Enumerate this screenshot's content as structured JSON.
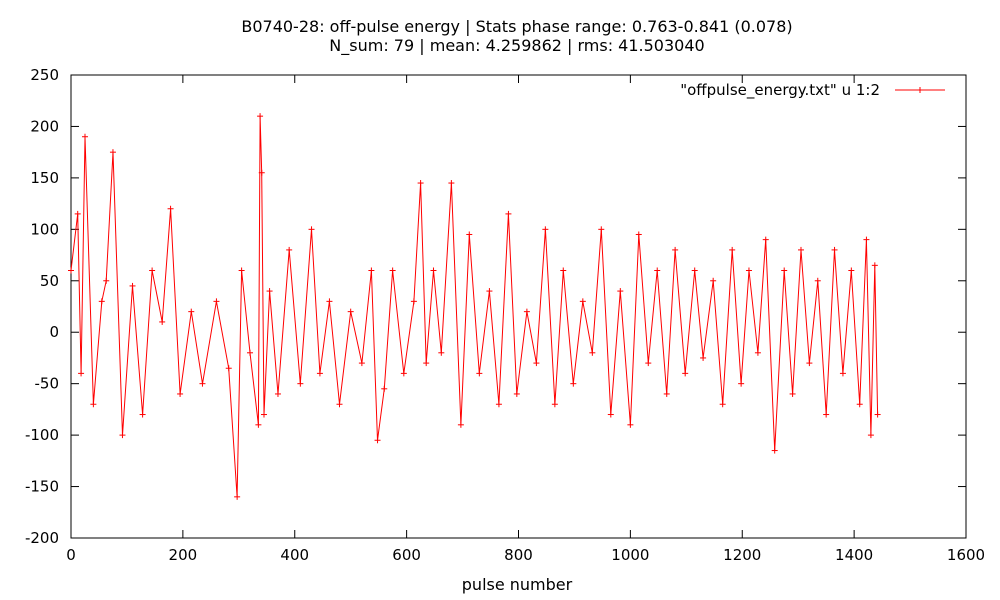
{
  "chart_data": {
    "type": "line",
    "title": "B0740-28: off-pulse energy | Stats phase range: 0.763-0.841 (0.078)",
    "subtitle": "N_sum: 79 | mean: 4.259862 | rms: 41.503040",
    "xlabel": "pulse number",
    "ylabel": "",
    "xlim": [
      0,
      1600
    ],
    "ylim": [
      -200,
      250
    ],
    "x_ticks": [
      "0",
      "200",
      "400",
      "600",
      "800",
      "1000",
      "1200",
      "1400",
      "1600"
    ],
    "y_ticks": [
      "-200",
      "-150",
      "-100",
      "-50",
      "0",
      "50",
      "100",
      "150",
      "200",
      "250"
    ],
    "grid": false,
    "legend_position": "top-right",
    "series": [
      {
        "name": "\"offpulse_energy.txt\" u 1:2",
        "color": "#ff0000",
        "marker": "plus",
        "x": [
          0,
          12,
          18,
          25,
          40,
          55,
          63,
          75,
          92,
          110,
          128,
          145,
          163,
          178,
          195,
          215,
          235,
          260,
          282,
          297,
          305,
          320,
          335,
          338,
          341,
          345,
          355,
          370,
          390,
          410,
          430,
          445,
          462,
          480,
          500,
          520,
          537,
          548,
          560,
          575,
          595,
          613,
          625,
          635,
          648,
          662,
          680,
          697,
          712,
          730,
          748,
          765,
          782,
          797,
          815,
          832,
          848,
          865,
          880,
          898,
          915,
          932,
          948,
          965,
          982,
          1000,
          1015,
          1032,
          1048,
          1065,
          1080,
          1098,
          1115,
          1130,
          1148,
          1165,
          1182,
          1198,
          1212,
          1228,
          1242,
          1258,
          1275,
          1290,
          1305,
          1320,
          1335,
          1350,
          1365,
          1380,
          1395,
          1410,
          1422,
          1430,
          1437,
          1442
        ],
        "y": [
          60,
          115,
          -40,
          190,
          -70,
          30,
          50,
          175,
          -100,
          45,
          -80,
          60,
          10,
          120,
          -60,
          20,
          -50,
          30,
          -35,
          -160,
          60,
          -20,
          -90,
          210,
          155,
          -80,
          40,
          -60,
          80,
          -50,
          100,
          -40,
          30,
          -70,
          20,
          -30,
          60,
          -105,
          -55,
          60,
          -40,
          30,
          145,
          -30,
          60,
          -20,
          145,
          -90,
          95,
          -40,
          40,
          -70,
          115,
          -60,
          20,
          -30,
          100,
          -70,
          60,
          -50,
          30,
          -20,
          100,
          -80,
          40,
          -90,
          95,
          -30,
          60,
          -60,
          80,
          -40,
          60,
          -25,
          50,
          -70,
          80,
          -50,
          60,
          -20,
          90,
          -115,
          60,
          -60,
          80,
          -30,
          50,
          -80,
          80,
          -40,
          60,
          -70,
          90,
          -100,
          65,
          -80
        ]
      }
    ]
  }
}
